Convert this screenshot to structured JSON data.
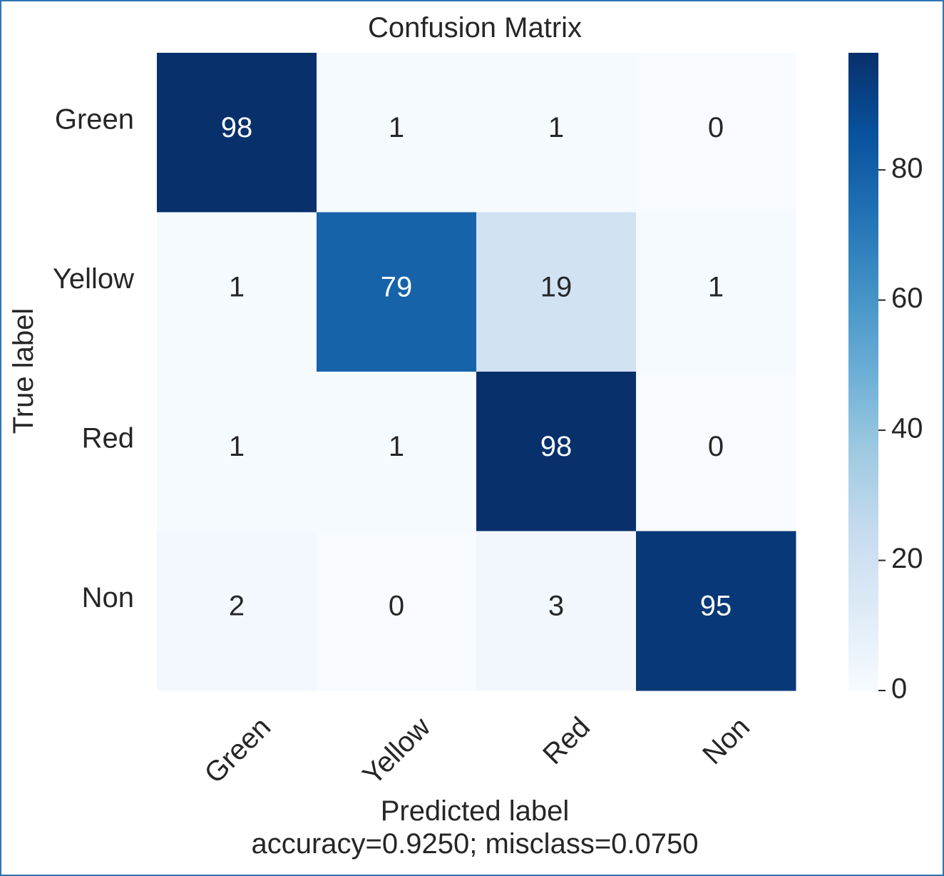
{
  "chart_data": {
    "type": "heatmap",
    "title": "Confusion Matrix",
    "xlabel": "Predicted label",
    "xlabel_note": "accuracy=0.9250; misclass=0.0750",
    "ylabel": "True label",
    "x_categories": [
      "Green",
      "Yellow",
      "Red",
      "Non"
    ],
    "y_categories": [
      "Green",
      "Yellow",
      "Red",
      "Non"
    ],
    "values": [
      [
        98,
        1,
        1,
        0
      ],
      [
        1,
        79,
        19,
        1
      ],
      [
        1,
        1,
        98,
        0
      ],
      [
        2,
        0,
        3,
        95
      ]
    ],
    "colormap": "Blues",
    "colorbar": {
      "range": [
        0,
        98
      ],
      "ticks": [
        0,
        20,
        40,
        60,
        80
      ]
    },
    "colors": {
      "low": "#f7fbff",
      "high": "#08306b",
      "text_dark": "#262626",
      "text_light": "#ffffff",
      "frame": "#2e75b6"
    }
  }
}
